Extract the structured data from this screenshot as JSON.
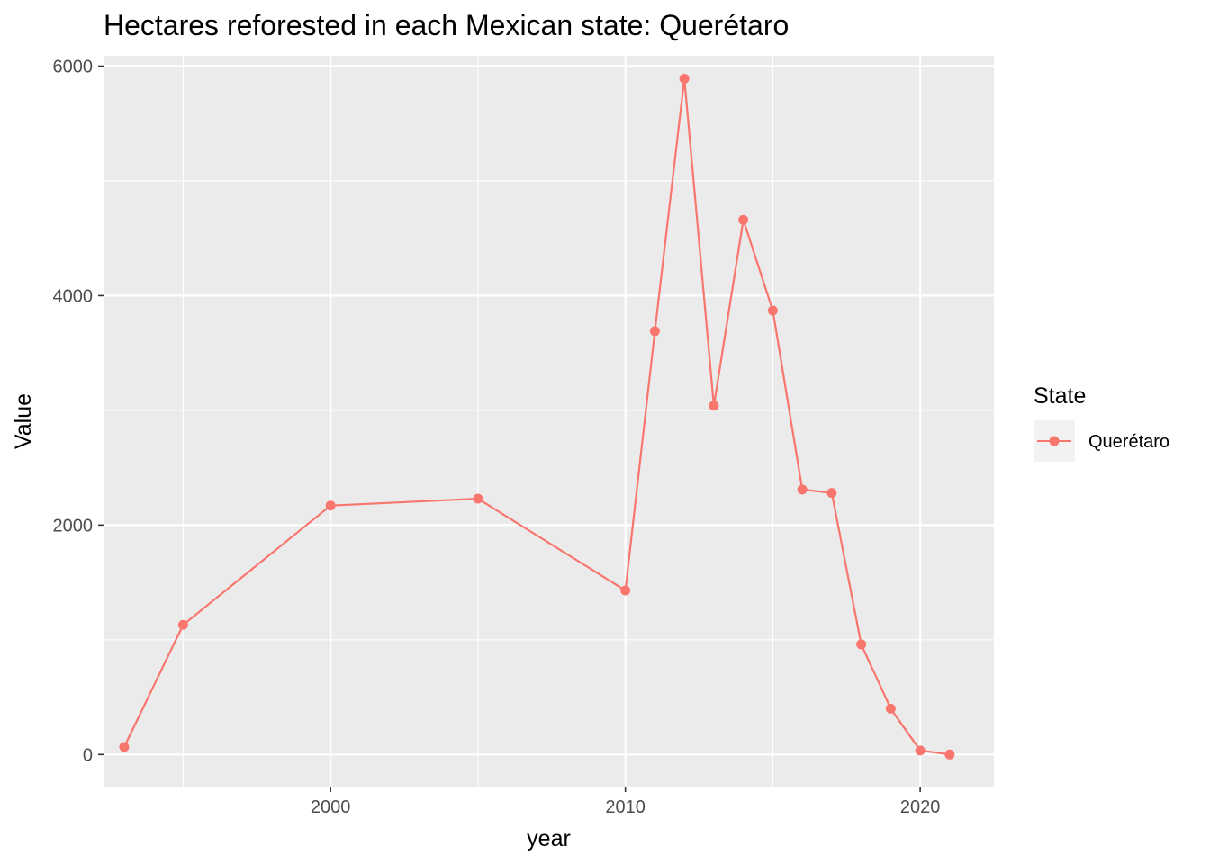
{
  "chart_data": {
    "type": "line",
    "title": "Hectares reforested in each Mexican state: Querétaro",
    "xlabel": "year",
    "ylabel": "Value",
    "xlim": [
      1992.3,
      2022.5
    ],
    "ylim": [
      -280,
      6090
    ],
    "x_ticks": [
      2000,
      2010,
      2020
    ],
    "y_ticks": [
      0,
      2000,
      4000,
      6000
    ],
    "x_tick_labels": [
      "2000",
      "2010",
      "2020"
    ],
    "y_tick_labels": [
      "0",
      "2000",
      "4000",
      "6000"
    ],
    "grid": true,
    "legend": {
      "title": "State",
      "position": "right"
    },
    "series": [
      {
        "name": "Querétaro",
        "color": "#F8766D",
        "x": [
          1993,
          1995,
          2000,
          2005,
          2010,
          2011,
          2012,
          2013,
          2014,
          2015,
          2016,
          2017,
          2018,
          2019,
          2020,
          2021
        ],
        "values": [
          65,
          1130,
          2170,
          2230,
          1430,
          3690,
          5890,
          3040,
          4660,
          3870,
          2310,
          2280,
          960,
          400,
          35,
          0
        ]
      }
    ]
  }
}
